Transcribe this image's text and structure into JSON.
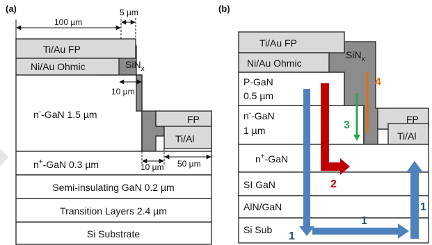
{
  "colors": {
    "metal_light": "#d9d9d9",
    "sin_dark": "#8c8c8c",
    "white": "#ffffff",
    "outline": "#222222",
    "arrow_blue": "#4f81bd",
    "arrow_red": "#c00000",
    "arrow_green": "#2aa84a",
    "arrow_orange": "#e36c09",
    "label_blue": "#1f4e79"
  },
  "panel_a": {
    "label": "(a)",
    "dims": {
      "d100": "100 µm",
      "d5": "5 µm",
      "d10a": "10 µm",
      "d10b": "10 µm",
      "d50": "50 µm"
    },
    "layers": {
      "ti_au_fp": "Ti/Au FP",
      "ni_au_ohmic": "Ni/Au Ohmic",
      "sin_base": "SiN",
      "sin_sub": "x",
      "n_gan_pre": "n",
      "n_gan_sup": "-",
      "n_gan_post": "-GaN 1.5 µm",
      "fp": "FP",
      "ti_al": "Ti/Al",
      "np_gan_pre": "n",
      "np_gan_sup": "+",
      "np_gan_post": "-GaN 0.3 µm",
      "semi_ins": "Semi-insulating GaN 0.2 µm",
      "transition": "Transition Layers  2.4 µm",
      "substrate": "Si Substrate"
    }
  },
  "panel_b": {
    "label": "(b)",
    "layers": {
      "ti_au_fp": "Ti/Au FP",
      "ni_au_ohmic": "Ni/Au Ohmic",
      "sin_base": "SiN",
      "sin_sub": "x",
      "p_gan_1": "P-GaN",
      "p_gan_2": "0.5 µm",
      "n_gan_pre": "n",
      "n_gan_sup": "-",
      "n_gan_post": "-GaN",
      "n_gan_2": "1 µm",
      "fp": "FP",
      "ti_al": "Ti/Al",
      "np_gan_pre": "n",
      "np_gan_sup": "+",
      "np_gan_post": "-GaN",
      "si_gan": "SI GaN",
      "aln_gan": "AlN/GaN",
      "si_sub": "Si Sub"
    },
    "arrows": {
      "n1_left": "1",
      "n1_mid": "1",
      "n1_right": "1",
      "n2": "2",
      "n3": "3",
      "n4": "4"
    }
  }
}
